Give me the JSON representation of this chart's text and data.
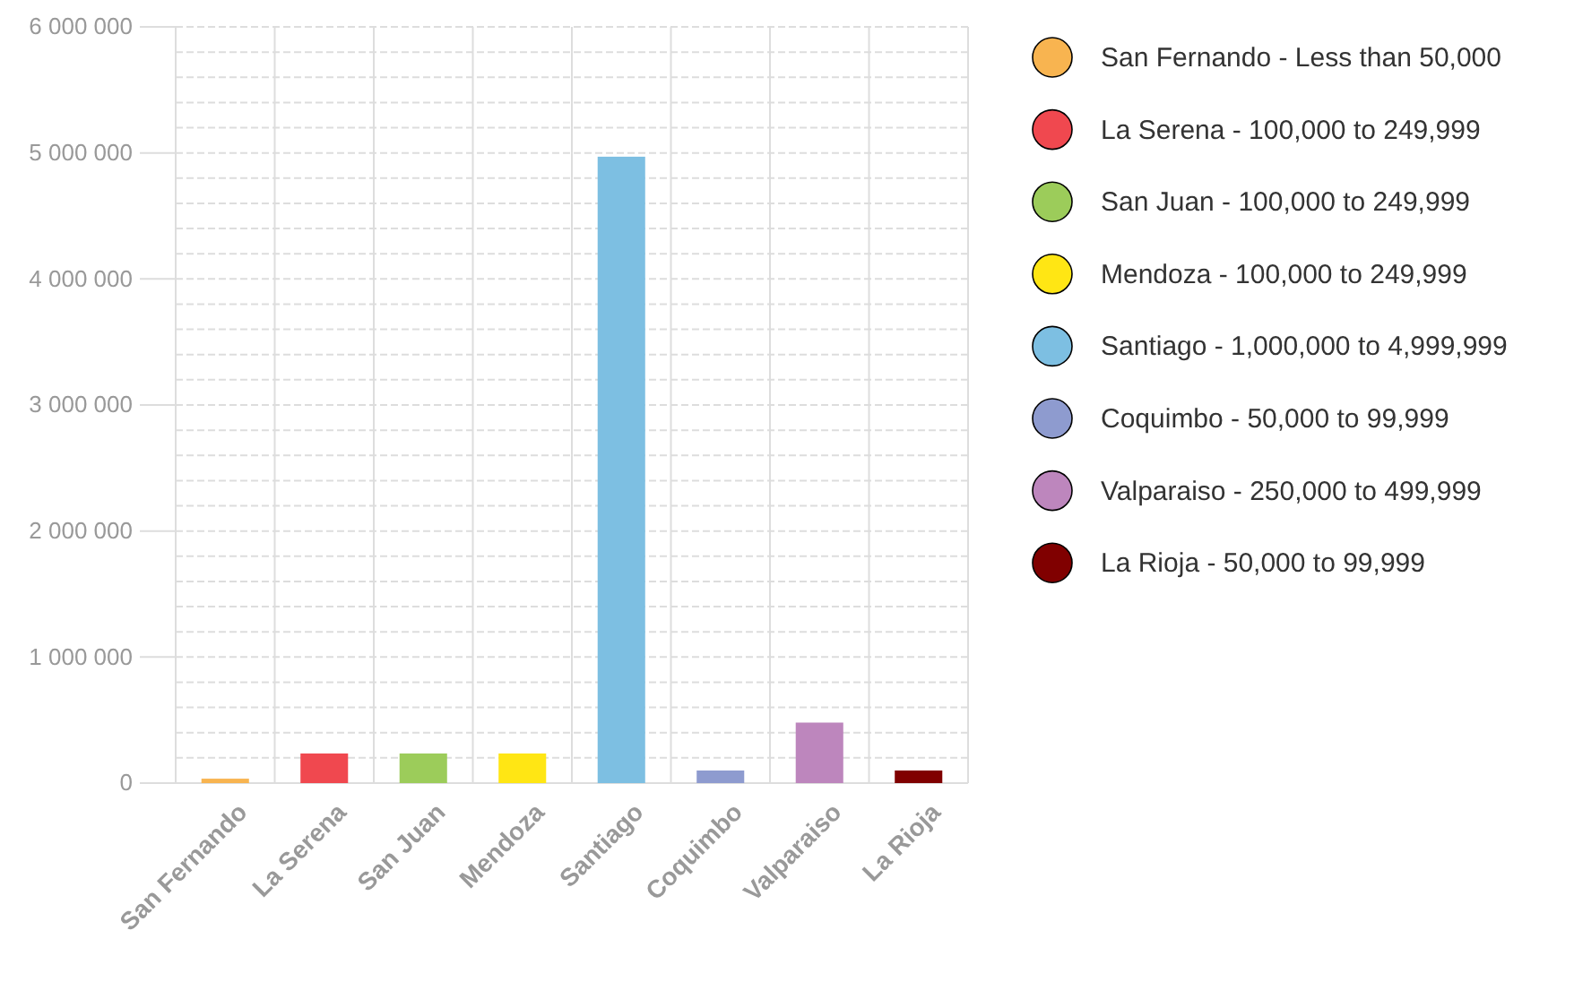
{
  "chart_data": {
    "type": "bar",
    "categories": [
      "San Fernando",
      "La Serena",
      "San Juan",
      "Mendoza",
      "Santiago",
      "Coquimbo",
      "Valparaiso",
      "La Rioja"
    ],
    "series": [
      {
        "name": "San Fernando - Less than 50,000",
        "color": "#f8b450",
        "values": [
          35000,
          null,
          null,
          null,
          null,
          null,
          null,
          null
        ]
      },
      {
        "name": "La Serena - 100,000 to 249,999",
        "color": "#f0484f",
        "values": [
          null,
          235000,
          null,
          null,
          null,
          null,
          null,
          null
        ]
      },
      {
        "name": "San Juan - 100,000 to 249,999",
        "color": "#9ccc5a",
        "values": [
          null,
          null,
          235000,
          null,
          null,
          null,
          null,
          null
        ]
      },
      {
        "name": "Mendoza - 100,000 to 249,999",
        "color": "#ffe614",
        "values": [
          null,
          null,
          null,
          235000,
          null,
          null,
          null,
          null
        ]
      },
      {
        "name": "Santiago - 1,000,000 to 4,999,999",
        "color": "#7dbfe2",
        "values": [
          null,
          null,
          null,
          null,
          4970000,
          null,
          null,
          null
        ]
      },
      {
        "name": "Coquimbo - 50,000 to 99,999",
        "color": "#8e9bcf",
        "values": [
          null,
          null,
          null,
          null,
          null,
          100000,
          null,
          null
        ]
      },
      {
        "name": "Valparaiso - 250,000 to 499,999",
        "color": "#bd86bd",
        "values": [
          null,
          null,
          null,
          null,
          null,
          null,
          480000,
          null
        ]
      },
      {
        "name": "La Rioja - 50,000 to 99,999",
        "color": "#800000",
        "values": [
          null,
          null,
          null,
          null,
          null,
          null,
          null,
          100000
        ]
      }
    ],
    "ylim": [
      0,
      6000000
    ],
    "yticks": [
      {
        "value": 0,
        "label": "0"
      },
      {
        "value": 200000,
        "label": null
      },
      {
        "value": 400000,
        "label": null
      },
      {
        "value": 600000,
        "label": null
      },
      {
        "value": 800000,
        "label": null
      },
      {
        "value": 1000000,
        "label": "1 000 000"
      },
      {
        "value": 1200000,
        "label": null
      },
      {
        "value": 1400000,
        "label": null
      },
      {
        "value": 1600000,
        "label": null
      },
      {
        "value": 1800000,
        "label": null
      },
      {
        "value": 2000000,
        "label": "2 000 000"
      },
      {
        "value": 2200000,
        "label": null
      },
      {
        "value": 2400000,
        "label": null
      },
      {
        "value": 2600000,
        "label": null
      },
      {
        "value": 2800000,
        "label": null
      },
      {
        "value": 3000000,
        "label": "3 000 000"
      },
      {
        "value": 3200000,
        "label": null
      },
      {
        "value": 3400000,
        "label": null
      },
      {
        "value": 3600000,
        "label": null
      },
      {
        "value": 3800000,
        "label": null
      },
      {
        "value": 4000000,
        "label": "4 000 000"
      },
      {
        "value": 4200000,
        "label": null
      },
      {
        "value": 4400000,
        "label": null
      },
      {
        "value": 4600000,
        "label": null
      },
      {
        "value": 4800000,
        "label": null
      },
      {
        "value": 5000000,
        "label": "5 000 000"
      },
      {
        "value": 5200000,
        "label": null
      },
      {
        "value": 5400000,
        "label": null
      },
      {
        "value": 5600000,
        "label": null
      },
      {
        "value": 5800000,
        "label": null
      },
      {
        "value": 6000000,
        "label": "6 000 000"
      }
    ],
    "grid": true,
    "legend": "right"
  }
}
